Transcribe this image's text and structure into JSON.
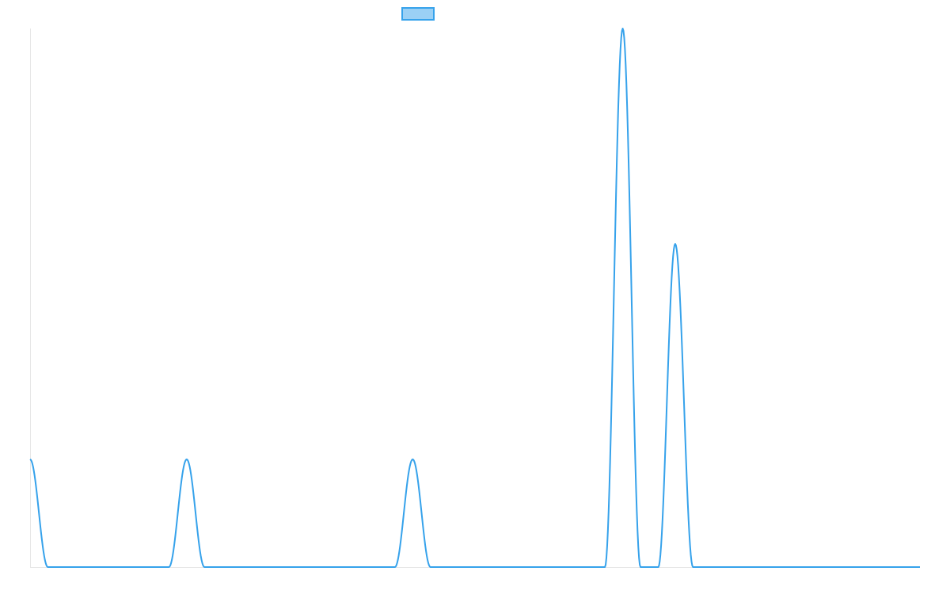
{
  "chart_data": {
    "type": "line",
    "title": "",
    "xlabel": "",
    "ylabel": "",
    "legend": {
      "placement": "top-center",
      "entries": [
        {
          "name": "",
          "swatch_color": "#9AD0F5",
          "border_color": "#36A2EB"
        }
      ]
    },
    "grid": false,
    "line_color": "#36A2EB",
    "axis_color": "#E6E6E6",
    "xlim": [
      0,
      100
    ],
    "ylim": [
      0,
      5
    ],
    "series": [
      {
        "name": "",
        "x": [
          0,
          2,
          15.6,
          17.6,
          19.6,
          41,
          43,
          45,
          64.6,
          66.6,
          68.6,
          70.6,
          72.5,
          74.5,
          76.5,
          100
        ],
        "y": [
          1,
          0,
          0,
          1,
          0,
          0,
          1,
          0,
          0,
          5,
          0,
          0,
          3,
          0,
          0,
          0
        ],
        "bump_width": 2
      }
    ]
  }
}
